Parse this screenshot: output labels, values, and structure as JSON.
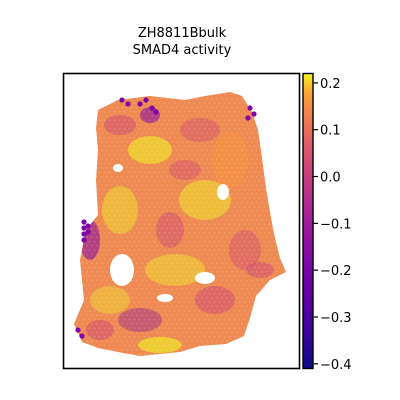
{
  "chart_data": {
    "type": "heatmap",
    "title_line1": "ZH8811Bbulk",
    "title_line2": "SMAD4 activity",
    "xlabel": "",
    "ylabel": "",
    "grid": false,
    "colormap": "plasma",
    "colorbar": {
      "range": [
        -0.41,
        0.22
      ],
      "ticks": [
        0.2,
        0.1,
        0.0,
        -0.1,
        -0.2,
        -0.3,
        -0.4
      ],
      "tick_labels": [
        "0.2",
        "0.1",
        "0.0",
        "−0.1",
        "−0.2",
        "−0.3",
        "−0.4"
      ]
    },
    "colors": {
      "low": "#0d0887",
      "mid_low": "#7e03a8",
      "mid": "#cc4778",
      "mid_high": "#f89540",
      "high": "#f0f921"
    }
  }
}
